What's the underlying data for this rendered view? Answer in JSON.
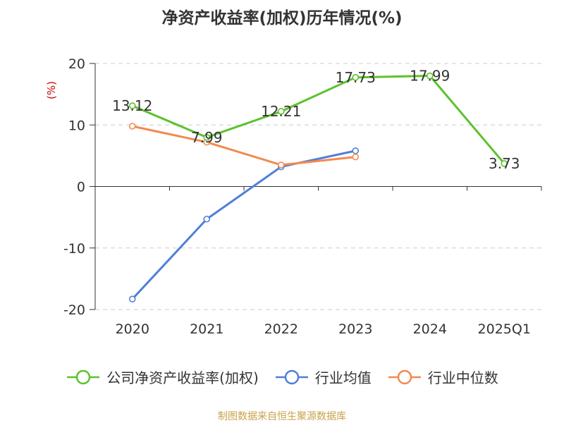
{
  "chart_data": {
    "type": "line",
    "title": "净资产收益率(加权)历年情况(%)",
    "ylabel": "(%)",
    "xlabel": "",
    "categories": [
      "2020",
      "2021",
      "2022",
      "2023",
      "2024",
      "2025Q1"
    ],
    "ylim": [
      -20,
      20
    ],
    "yticks": [
      20,
      10,
      0,
      -10,
      -20
    ],
    "grid": true,
    "legend_position": "bottom",
    "series": [
      {
        "name": "公司净资产收益率(加权)",
        "color": "#5cc22d",
        "values": [
          13.12,
          7.99,
          12.21,
          17.73,
          17.99,
          3.73
        ],
        "show_labels": true
      },
      {
        "name": "行业均值",
        "color": "#4f7fd9",
        "values": [
          -18.3,
          -5.3,
          3.2,
          5.8,
          null,
          null
        ],
        "show_labels": false
      },
      {
        "name": "行业中位数",
        "color": "#f4894f",
        "values": [
          9.8,
          7.2,
          3.5,
          4.8,
          null,
          null
        ],
        "show_labels": false
      }
    ],
    "source": "制图数据来自恒生聚源数据库"
  }
}
